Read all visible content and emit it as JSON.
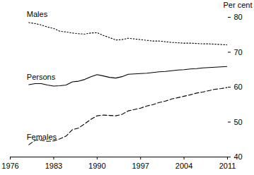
{
  "chart_data": {
    "type": "line",
    "x": [
      1979,
      1980,
      1981,
      1982,
      1983,
      1984,
      1985,
      1986,
      1987,
      1988,
      1989,
      1990,
      1991,
      1992,
      1993,
      1994,
      1995,
      1996,
      1997,
      1998,
      1999,
      2000,
      2001,
      2002,
      2003,
      2004,
      2005,
      2006,
      2007,
      2008,
      2009,
      2010,
      2011
    ],
    "series": [
      {
        "name": "Males",
        "color": "#000000",
        "line_style": "dotted",
        "values": [
          78.5,
          78.2,
          77.8,
          77.2,
          76.8,
          76.0,
          75.8,
          75.5,
          75.3,
          75.2,
          75.5,
          75.6,
          74.8,
          74.2,
          73.5,
          73.6,
          74.0,
          73.8,
          73.6,
          73.4,
          73.2,
          73.2,
          73.0,
          72.8,
          72.7,
          72.6,
          72.6,
          72.5,
          72.4,
          72.4,
          72.3,
          72.2,
          72.1
        ]
      },
      {
        "name": "Persons",
        "color": "#000000",
        "line_style": "solid",
        "values": [
          60.7,
          61.0,
          61.0,
          60.6,
          60.3,
          60.4,
          60.6,
          61.5,
          61.7,
          62.2,
          63.0,
          63.6,
          63.2,
          62.8,
          62.6,
          63.0,
          63.7,
          63.8,
          63.9,
          64.0,
          64.2,
          64.4,
          64.5,
          64.7,
          64.9,
          65.0,
          65.2,
          65.3,
          65.5,
          65.6,
          65.7,
          65.8,
          65.9
        ]
      },
      {
        "name": "Females",
        "color": "#000000",
        "line_style": "dashed",
        "values": [
          43.5,
          44.8,
          44.8,
          44.5,
          44.6,
          45.2,
          46.0,
          47.8,
          48.3,
          49.5,
          50.8,
          51.8,
          52.0,
          51.9,
          51.8,
          52.2,
          53.2,
          53.6,
          54.0,
          54.6,
          55.0,
          55.6,
          56.0,
          56.6,
          57.0,
          57.4,
          57.8,
          58.3,
          58.6,
          59.0,
          59.4,
          59.6,
          59.9
        ]
      }
    ],
    "y_label": "Per cent",
    "xlim": [
      1976,
      2011
    ],
    "xticks": [
      1976,
      1983,
      1990,
      1997,
      2004,
      2011
    ],
    "ylim": [
      40,
      80
    ],
    "yticks": [
      40,
      50,
      60,
      70,
      80
    ],
    "grid": false
  }
}
